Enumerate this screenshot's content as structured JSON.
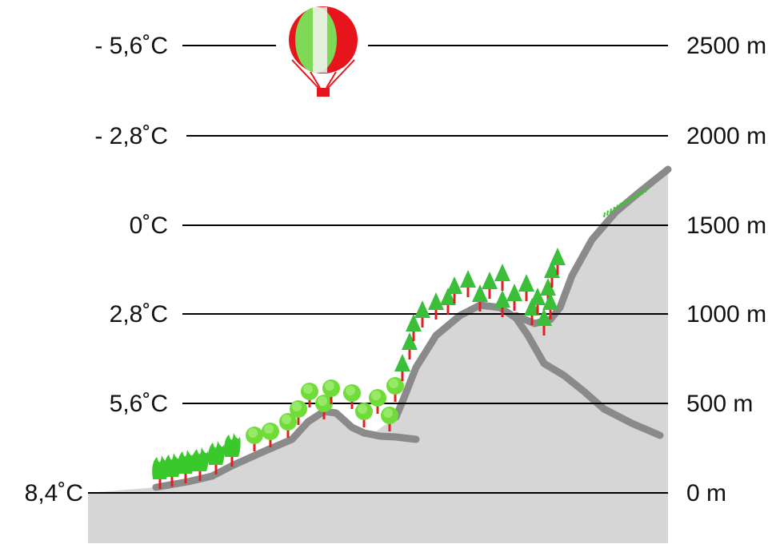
{
  "title": "",
  "levels": [
    {
      "temperature": "- 5,6˚C",
      "altitude": "2500 m"
    },
    {
      "temperature": "- 2,8˚C",
      "altitude": "2000 m"
    },
    {
      "temperature": "0˚C",
      "altitude": "1500 m"
    },
    {
      "temperature": "2,8˚C",
      "altitude": "1000 m"
    },
    {
      "temperature": "5,6˚C",
      "altitude": "500 m"
    },
    {
      "temperature": "8,4˚C",
      "altitude": "0 m"
    }
  ],
  "colors": {
    "mountain": "#d6d6d6",
    "ridge": "#8a8a8a",
    "tree_green": "#3bbf3b",
    "leaf_green": "#39c92a",
    "trunk_red": "#e02020",
    "balloon_red": "#e8141c",
    "balloon_green": "#7ed957",
    "line": "#000000"
  },
  "icons": {
    "balloon": "hot-air-balloon-icon",
    "conifer": "conifer-tree-icon",
    "deciduous": "deciduous-tree-icon",
    "shrub": "shrub-icon",
    "grass": "alpine-grass-icon"
  }
}
